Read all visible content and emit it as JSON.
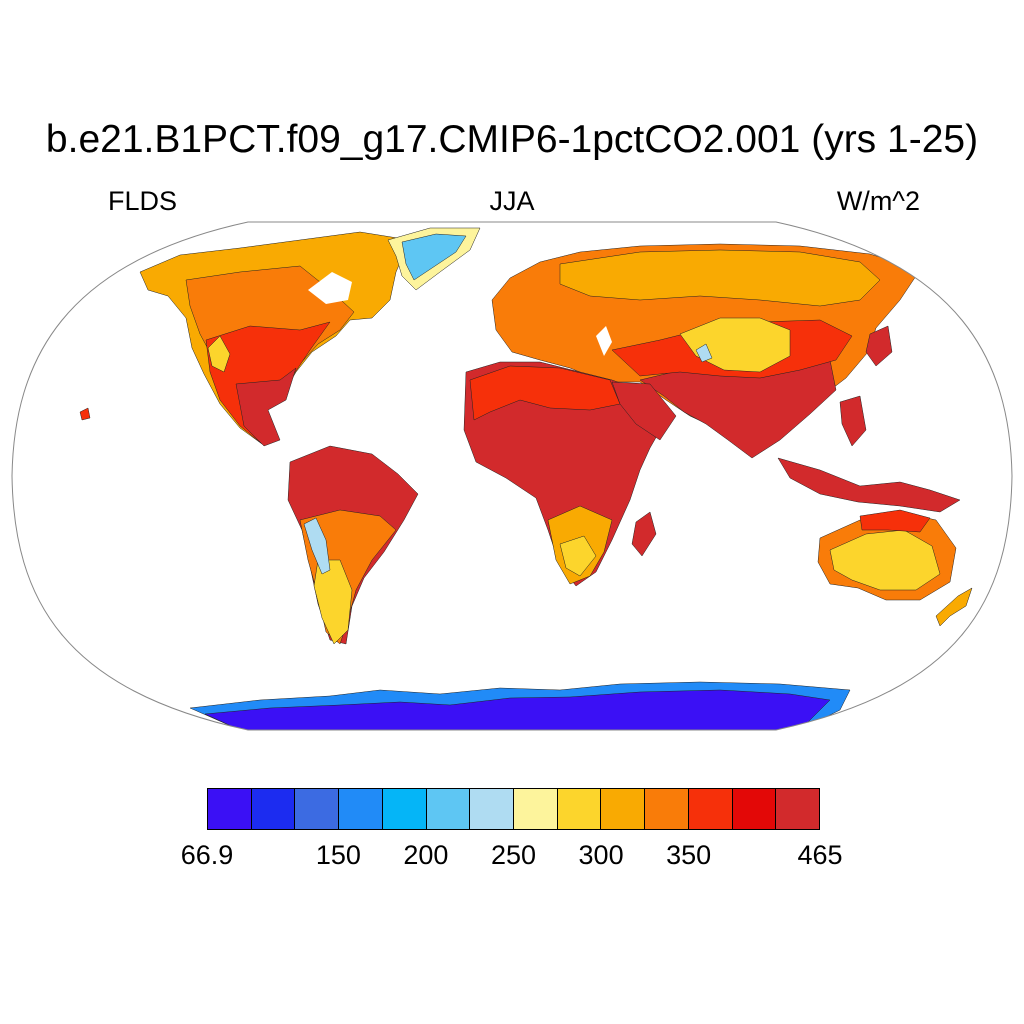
{
  "title": "b.e21.B1PCT.f09_g17.CMIP6-1pctCO2.001 (yrs 1-25)",
  "variable": "FLDS",
  "season": "JJA",
  "units": "W/m^2",
  "colorbar": {
    "colors": [
      "#3b10f5",
      "#1c2cf0",
      "#3c6be2",
      "#218bf7",
      "#05b5f7",
      "#5ec6f3",
      "#afdcf2",
      "#fdf49c",
      "#fcd52c",
      "#f9aa02",
      "#f97c09",
      "#f6300a",
      "#e30807",
      "#d22a2c"
    ],
    "tick_labels": [
      {
        "label": "66.9",
        "box_edge": 0
      },
      {
        "label": "150",
        "box_edge": 3
      },
      {
        "label": "200",
        "box_edge": 5
      },
      {
        "label": "250",
        "box_edge": 7
      },
      {
        "label": "300",
        "box_edge": 9
      },
      {
        "label": "350",
        "box_edge": 11
      },
      {
        "label": "465",
        "box_edge": 14
      }
    ]
  },
  "map_legend": {
    "antarctica": "#3b10f5",
    "antarctic_coast": "#218bf7",
    "greenland_interior": "#5ec6f3",
    "greenland_coast": "#fdf49c",
    "tropics": "#d22a2c",
    "subtropics": "#f6300a",
    "midlatitudes": "#f97c09",
    "high_latitudes": "#f9aa02",
    "deserts_plateaus": "#fcd52c",
    "andes_tibet_peaks": "#afdcf2"
  }
}
